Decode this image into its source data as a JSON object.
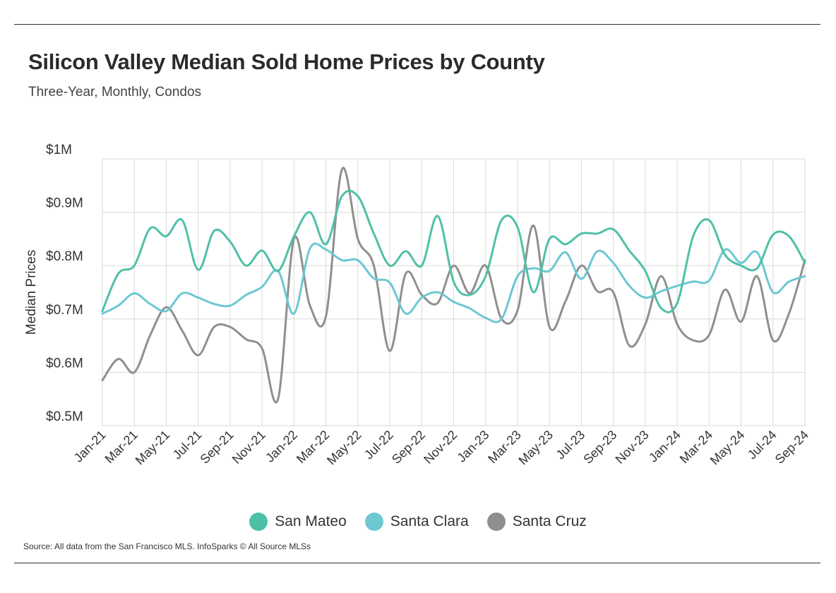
{
  "title": "Silicon Valley Median Sold Home Prices by County",
  "subtitle": "Three-Year, Monthly, Condos",
  "source": "Source:  All data from the San Francisco MLS. InfoSparks © All Source MLSs",
  "colors": {
    "san_mateo": "#4fc0a8",
    "santa_clara": "#6cc8d3",
    "santa_cruz": "#8f8f8f",
    "grid": "#d9d9d9"
  },
  "chart_data": {
    "type": "line",
    "title": "Silicon Valley Median Sold Home Prices by County",
    "subtitle": "Three-Year, Monthly, Condos",
    "ylabel": "Median Prices",
    "xlabel": "",
    "ylim": [
      0.5,
      1.0
    ],
    "yticks": [
      {
        "value": 1.0,
        "label": "$1M"
      },
      {
        "value": 0.9,
        "label": "$0.9M"
      },
      {
        "value": 0.8,
        "label": "$0.8M"
      },
      {
        "value": 0.7,
        "label": "$0.7M"
      },
      {
        "value": 0.6,
        "label": "$0.6M"
      },
      {
        "value": 0.5,
        "label": "$0.5M"
      }
    ],
    "x": [
      "Jan-21",
      "Feb-21",
      "Mar-21",
      "Apr-21",
      "May-21",
      "Jun-21",
      "Jul-21",
      "Aug-21",
      "Sep-21",
      "Oct-21",
      "Nov-21",
      "Dec-21",
      "Jan-22",
      "Feb-22",
      "Mar-22",
      "Apr-22",
      "May-22",
      "Jun-22",
      "Jul-22",
      "Aug-22",
      "Sep-22",
      "Oct-22",
      "Nov-22",
      "Dec-22",
      "Jan-23",
      "Feb-23",
      "Mar-23",
      "Apr-23",
      "May-23",
      "Jun-23",
      "Jul-23",
      "Aug-23",
      "Sep-23",
      "Oct-23",
      "Nov-23",
      "Dec-23",
      "Jan-24",
      "Feb-24",
      "Mar-24",
      "Apr-24",
      "May-24",
      "Jun-24",
      "Jul-24",
      "Aug-24",
      "Sep-24"
    ],
    "xtick_labels": [
      "Jan-21",
      "Mar-21",
      "May-21",
      "Jul-21",
      "Sep-21",
      "Nov-21",
      "Jan-22",
      "Mar-22",
      "May-22",
      "Jul-22",
      "Sep-22",
      "Nov-22",
      "Jan-23",
      "Mar-23",
      "May-23",
      "Jul-23",
      "Sep-23",
      "Nov-23",
      "Jan-24",
      "Mar-24",
      "May-24",
      "Jul-24",
      "Sep-24"
    ],
    "series": [
      {
        "name": "San Mateo",
        "color_key": "san_mateo",
        "values": [
          0.715,
          0.785,
          0.8,
          0.87,
          0.855,
          0.885,
          0.792,
          0.865,
          0.845,
          0.8,
          0.828,
          0.79,
          0.855,
          0.9,
          0.84,
          0.93,
          0.93,
          0.86,
          0.8,
          0.827,
          0.8,
          0.893,
          0.77,
          0.745,
          0.78,
          0.885,
          0.872,
          0.75,
          0.85,
          0.84,
          0.86,
          0.86,
          0.868,
          0.828,
          0.79,
          0.72,
          0.73,
          0.855,
          0.885,
          0.82,
          0.8,
          0.795,
          0.858,
          0.855,
          0.805
        ]
      },
      {
        "name": "Santa Clara",
        "color_key": "santa_clara",
        "values": [
          0.71,
          0.725,
          0.748,
          0.728,
          0.715,
          0.748,
          0.74,
          0.728,
          0.725,
          0.745,
          0.76,
          0.79,
          0.71,
          0.832,
          0.83,
          0.81,
          0.81,
          0.776,
          0.768,
          0.71,
          0.74,
          0.75,
          0.732,
          0.72,
          0.702,
          0.7,
          0.78,
          0.795,
          0.79,
          0.825,
          0.775,
          0.827,
          0.805,
          0.762,
          0.74,
          0.752,
          0.762,
          0.77,
          0.772,
          0.83,
          0.805,
          0.825,
          0.75,
          0.77,
          0.78
        ]
      },
      {
        "name": "Santa Cruz",
        "color_key": "santa_cruz",
        "values": [
          0.585,
          0.625,
          0.6,
          0.67,
          0.722,
          0.678,
          0.632,
          0.685,
          0.685,
          0.662,
          0.645,
          0.55,
          0.85,
          0.725,
          0.705,
          0.98,
          0.85,
          0.8,
          0.64,
          0.785,
          0.745,
          0.73,
          0.8,
          0.748,
          0.8,
          0.7,
          0.716,
          0.875,
          0.685,
          0.733,
          0.8,
          0.752,
          0.75,
          0.65,
          0.69,
          0.78,
          0.69,
          0.66,
          0.67,
          0.755,
          0.695,
          0.78,
          0.66,
          0.71,
          0.81
        ]
      }
    ],
    "legend": [
      "San Mateo",
      "Santa Clara",
      "Santa Cruz"
    ],
    "legend_position": "bottom-center",
    "grid": true
  }
}
